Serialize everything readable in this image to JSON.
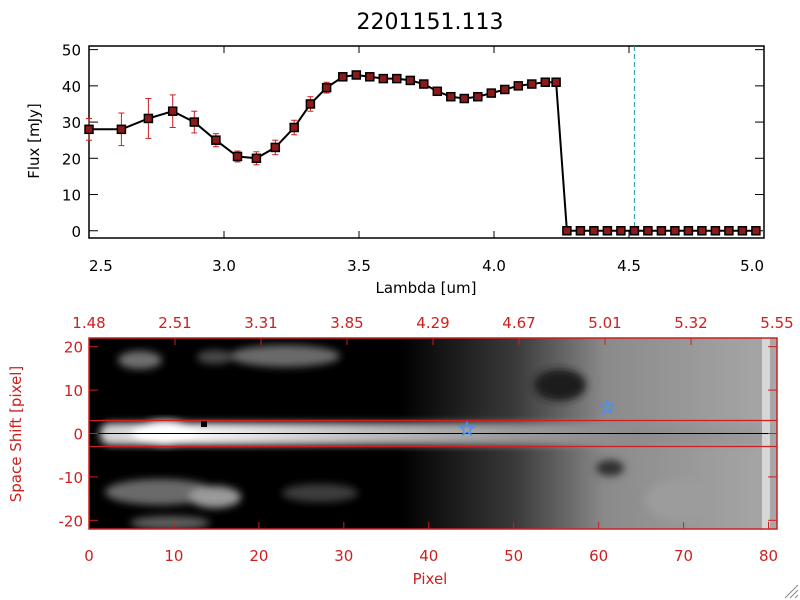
{
  "chart_data": [
    {
      "type": "line",
      "title": "2201151.113",
      "xlabel": "Lambda [um]",
      "ylabel": "Flux [mJy]",
      "xlim": [
        2.5,
        5.0
      ],
      "ylim": [
        -2,
        51
      ],
      "xticks": [
        "2.5",
        "3.0",
        "3.5",
        "4.0",
        "4.5",
        "5.0"
      ],
      "yticks": [
        "0",
        "10",
        "20",
        "30",
        "40",
        "50"
      ],
      "colors": {
        "line": "#000000",
        "marker": "#8b1a1a",
        "errorbar": "#cc2020",
        "vline": "#20a0a0",
        "zero_line": "#cc2020"
      },
      "vline_x": 4.52,
      "series": [
        {
          "x": [
            2.5,
            2.62,
            2.72,
            2.81,
            2.89,
            2.97,
            3.05,
            3.12,
            3.19,
            3.26,
            3.32,
            3.38,
            3.44,
            3.49,
            3.54,
            3.59,
            3.64,
            3.69,
            3.74,
            3.79,
            3.84,
            3.89,
            3.94,
            3.99,
            4.04,
            4.09,
            4.14,
            4.19,
            4.23,
            4.27,
            4.32,
            4.37,
            4.42,
            4.47,
            4.52,
            4.57,
            4.62,
            4.67,
            4.72,
            4.77,
            4.82,
            4.87,
            4.92,
            4.97
          ],
          "y": [
            28,
            28,
            31,
            33,
            30,
            25,
            20.5,
            20,
            23,
            28.5,
            35,
            39.5,
            42.5,
            43,
            42.5,
            42,
            42,
            41.5,
            40.5,
            38.5,
            37,
            36.5,
            37,
            38,
            39,
            40,
            40.5,
            41,
            41,
            0,
            0,
            0,
            0,
            0,
            0,
            0,
            0,
            0,
            0,
            0,
            0,
            0,
            0,
            0
          ],
          "err": [
            3,
            4.5,
            5.5,
            4.5,
            3,
            1.8,
            1.5,
            1.8,
            2,
            2,
            2,
            1.5,
            1,
            1,
            1,
            1,
            1,
            1,
            1,
            1,
            1,
            1,
            1,
            1,
            1,
            1,
            1,
            1,
            1,
            0,
            0,
            0,
            0,
            0,
            0,
            0,
            0,
            0,
            0,
            0,
            0,
            0,
            0,
            0
          ]
        }
      ]
    },
    {
      "type": "heatmap",
      "xlabel": "Pixel",
      "ylabel": "Space Shift [pixel]",
      "xlim": [
        0,
        81
      ],
      "ylim": [
        -22,
        22
      ],
      "xticks": [
        "0",
        "10",
        "20",
        "30",
        "40",
        "50",
        "60",
        "70",
        "80"
      ],
      "yticks": [
        "-20",
        "-10",
        "0",
        "10",
        "20"
      ],
      "top_ticks": [
        "1.48",
        "2.51",
        "3.31",
        "3.85",
        "4.29",
        "4.67",
        "5.01",
        "5.32",
        "5.55"
      ],
      "colors": {
        "axis": "#cc2020",
        "aperture_line": "#cc2020",
        "trace_line": "#000000",
        "star": "#4090ff"
      },
      "aperture_y": [
        3,
        -3
      ],
      "stars": [
        {
          "x": 44.5,
          "y": 1
        },
        {
          "x": 61,
          "y": 6
        }
      ]
    }
  ]
}
